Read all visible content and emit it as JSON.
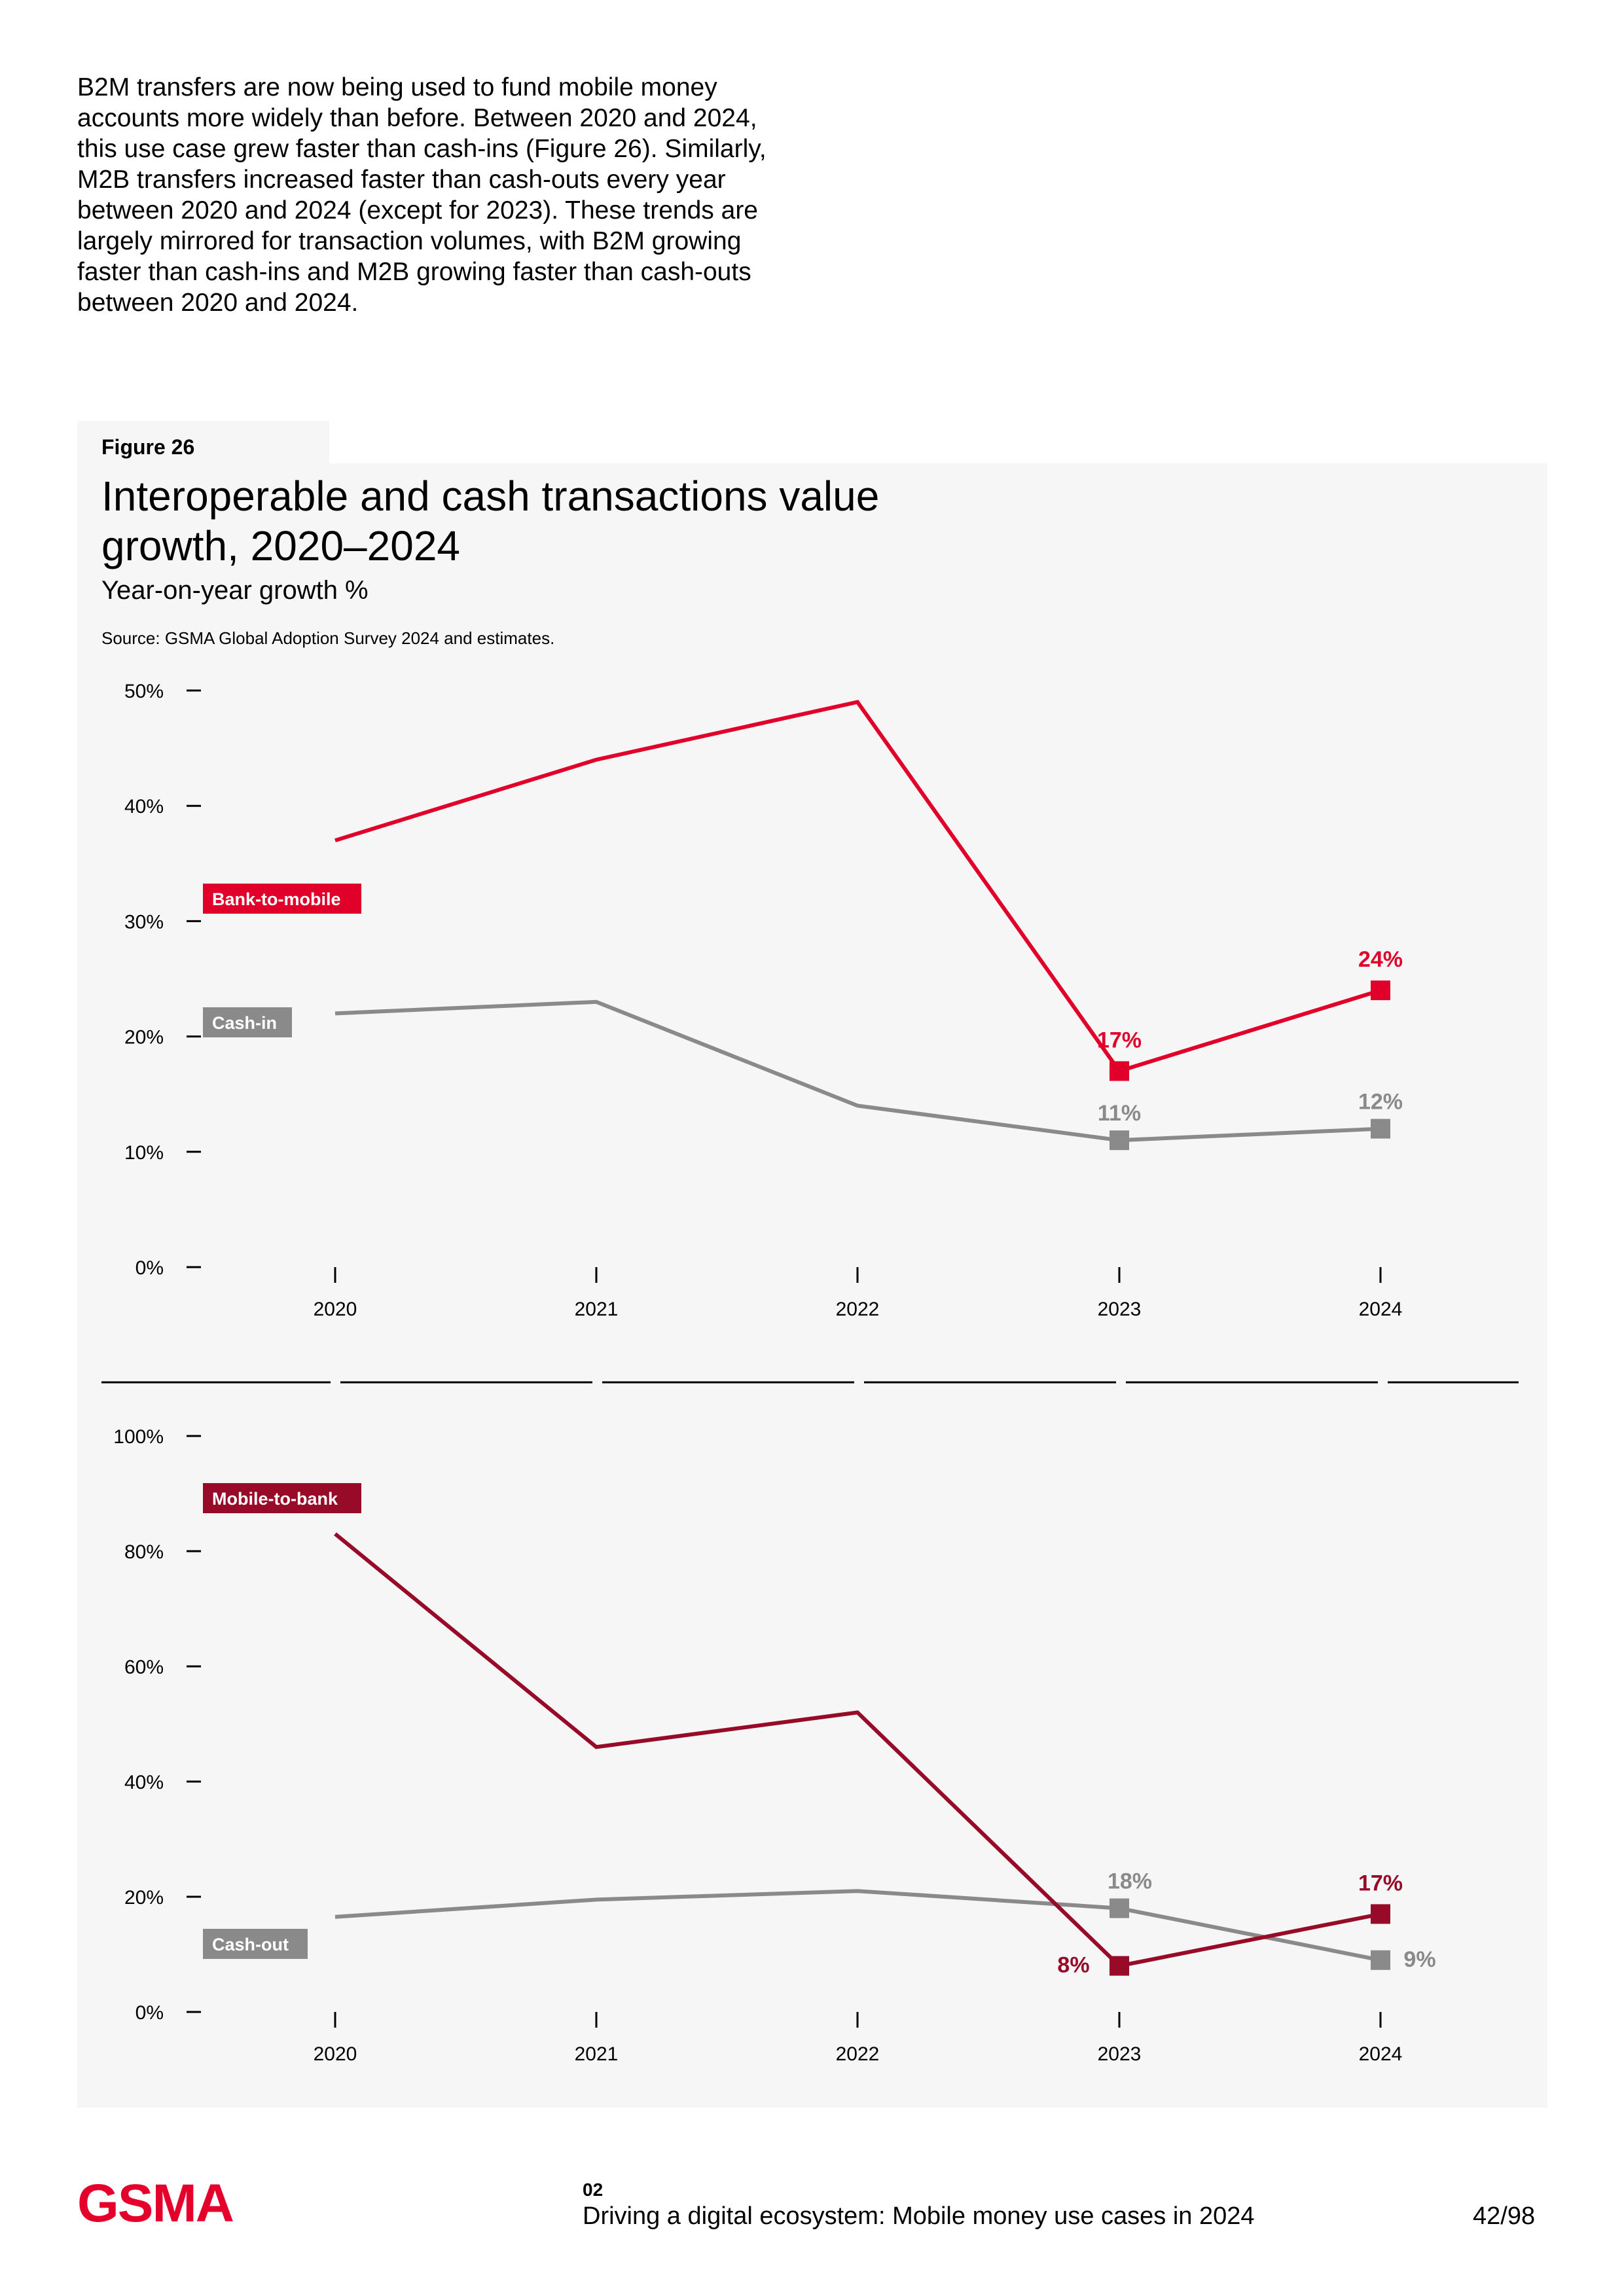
{
  "intro_text": "B2M transfers are now being used to fund mobile money accounts more widely than before. Between 2020 and 2024, this use case grew faster than cash-ins (Figure 26). Similarly, M2B transfers increased faster than cash-outs every year between 2020 and 2024 (except for 2023). These trends are largely mirrored for transaction volumes, with B2M growing faster than cash-ins and M2B growing faster than cash-outs between 2020 and 2024.",
  "figure": {
    "label": "Figure 26",
    "title": "Interoperable and cash transactions value growth, 2020–2024",
    "subtitle": "Year-on-year growth %",
    "source": "Source: GSMA Global Adoption Survey 2024 and estimates."
  },
  "colors": {
    "bank_to_mobile": "#e0002a",
    "mobile_to_bank": "#970a28",
    "cash": "#8a8a8a",
    "panel_bg": "#f6f6f6",
    "brand": "#e4002b"
  },
  "chart_data": [
    {
      "type": "line",
      "title": "Interoperable and cash transactions value growth, 2020–2024",
      "ylabel": "Year-on-year growth %",
      "x": [
        "2020",
        "2021",
        "2022",
        "2023",
        "2024"
      ],
      "ylim": [
        0,
        50
      ],
      "yticks": [
        "0%",
        "10%",
        "20%",
        "30%",
        "40%",
        "50%"
      ],
      "ytick_values": [
        0,
        10,
        20,
        30,
        40,
        50
      ],
      "grid": false,
      "series": [
        {
          "name": "Bank-to-mobile",
          "color_key": "bank_to_mobile",
          "values": [
            37,
            44,
            49,
            17,
            24
          ],
          "labels": [
            null,
            null,
            null,
            "17%",
            "24%"
          ]
        },
        {
          "name": "Cash-in",
          "color_key": "cash",
          "values": [
            22,
            23,
            14,
            11,
            12
          ],
          "labels": [
            null,
            null,
            null,
            "11%",
            "12%"
          ]
        }
      ]
    },
    {
      "type": "line",
      "x": [
        "2020",
        "2021",
        "2022",
        "2023",
        "2024"
      ],
      "ylim": [
        0,
        100
      ],
      "yticks": [
        "0%",
        "20%",
        "40%",
        "60%",
        "80%",
        "100%"
      ],
      "ytick_values": [
        0,
        20,
        40,
        60,
        80,
        100
      ],
      "grid": false,
      "series": [
        {
          "name": "Mobile-to-bank",
          "color_key": "mobile_to_bank",
          "values": [
            83,
            46,
            52,
            8,
            17
          ],
          "labels": [
            null,
            null,
            null,
            "8%",
            "17%"
          ]
        },
        {
          "name": "Cash-out",
          "color_key": "cash",
          "values": [
            16.5,
            19.5,
            21,
            18,
            9
          ],
          "labels": [
            null,
            null,
            null,
            "18%",
            "9%"
          ]
        }
      ]
    }
  ],
  "footer": {
    "logo": "GSMA",
    "section_number": "02",
    "section_title": "Driving a digital ecosystem: Mobile money use cases in 2024",
    "page": "42/98"
  }
}
